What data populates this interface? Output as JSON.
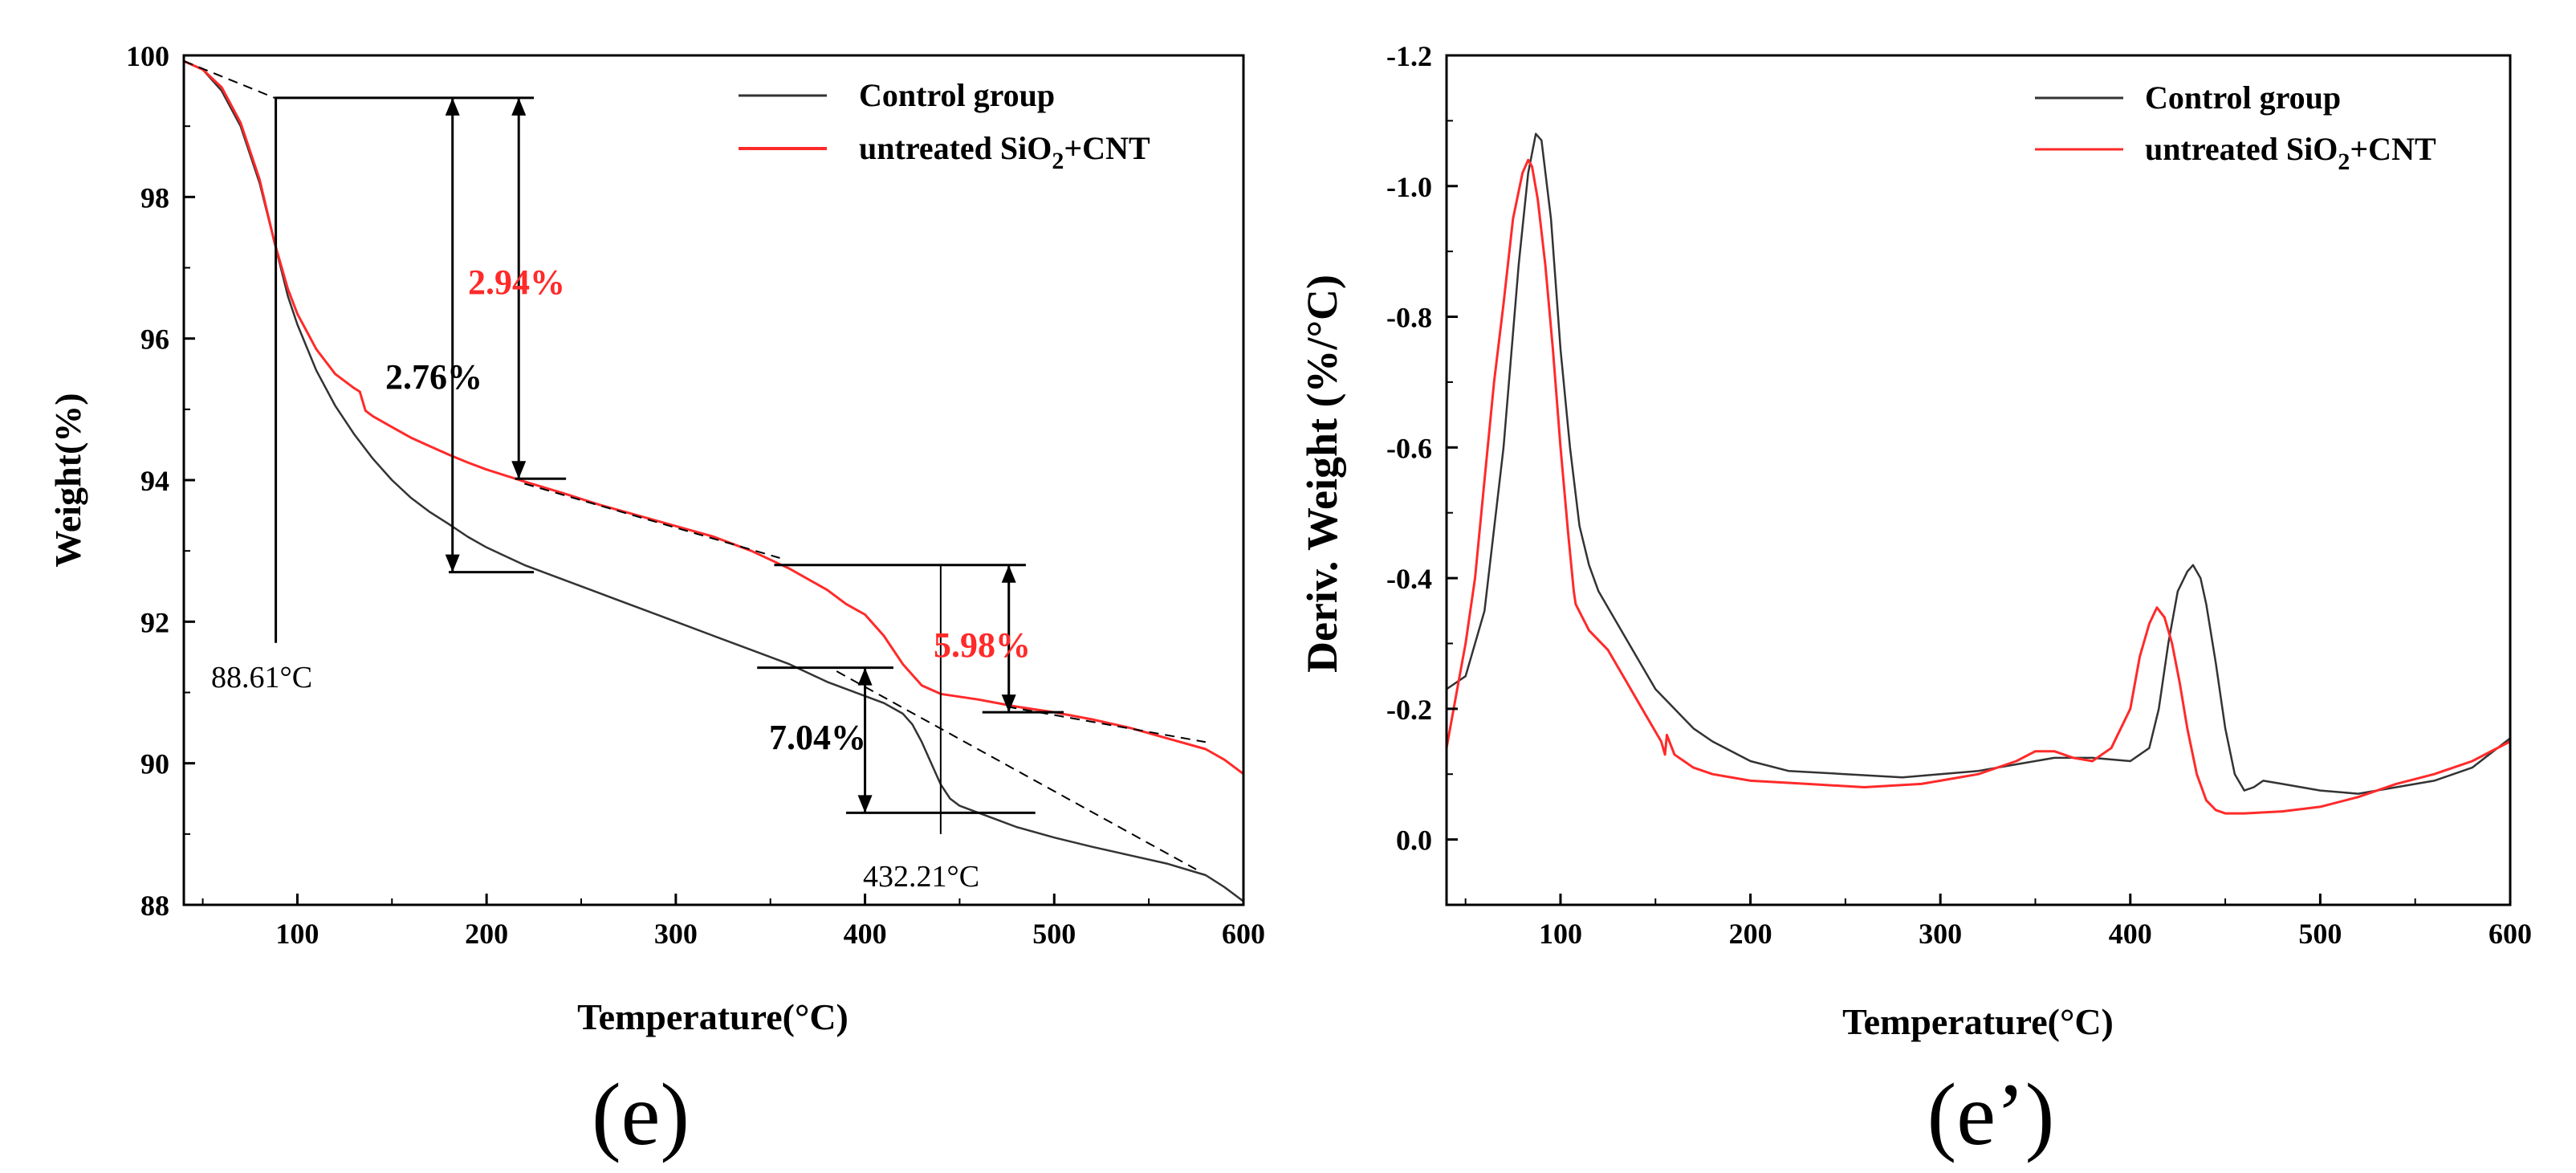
{
  "panel_e": {
    "panel_label": "(e)",
    "xlabel": "Temperature(°C)",
    "ylabel": "Weight(%)",
    "xlim": [
      40,
      600
    ],
    "ylim": [
      88,
      100
    ],
    "x_ticks": [
      100,
      200,
      300,
      400,
      500,
      600
    ],
    "y_ticks": [
      88,
      90,
      92,
      94,
      96,
      98,
      100
    ],
    "legend": {
      "control": "Control group",
      "treated_prefix": "untreated SiO",
      "treated_sub": "2",
      "treated_suffix": "+CNT"
    },
    "annotations": {
      "ctrl_step1": "2.76%",
      "treated_step1": "2.94%",
      "ctrl_step2": "7.04%",
      "treated_step2": "5.98%",
      "temp_peak1": "88.61°C",
      "temp_peak2": "432.21°C"
    }
  },
  "panel_e2": {
    "panel_label": "(e’)",
    "xlabel": "Temperature(°C)",
    "ylabel": "Deriv. Weight (%/°C)",
    "xlim": [
      40,
      600
    ],
    "ylim": [
      0.1,
      -1.2
    ],
    "x_ticks": [
      100,
      200,
      300,
      400,
      500,
      600
    ],
    "y_ticks": [
      0.0,
      -0.2,
      -0.4,
      -0.6,
      -0.8,
      -1.0,
      -1.2
    ],
    "y_tick_labels": [
      "0.0",
      "-0.2",
      "-0.4",
      "-0.6",
      "-0.8",
      "-1.0",
      "-1.2"
    ],
    "legend": {
      "control": "Control group",
      "treated_prefix": "untreated SiO",
      "treated_sub": "2",
      "treated_suffix": "+CNT"
    }
  },
  "colors": {
    "control": "#333333",
    "treated": "#ff2a2a",
    "axis": "#000000"
  },
  "chart_data": [
    {
      "type": "line",
      "title": "(e)",
      "xlabel": "Temperature(°C)",
      "ylabel": "Weight(%)",
      "xlim": [
        40,
        600
      ],
      "ylim": [
        88,
        100
      ],
      "series": [
        {
          "name": "Control group",
          "x": [
            40,
            50,
            60,
            70,
            80,
            88,
            95,
            100,
            110,
            120,
            130,
            140,
            150,
            160,
            170,
            180,
            190,
            200,
            220,
            240,
            260,
            280,
            300,
            320,
            340,
            360,
            380,
            400,
            410,
            420,
            425,
            430,
            435,
            440,
            445,
            450,
            460,
            470,
            480,
            500,
            520,
            540,
            560,
            580,
            590,
            600
          ],
          "y": [
            99.92,
            99.8,
            99.5,
            99.0,
            98.2,
            97.35,
            96.6,
            96.2,
            95.55,
            95.05,
            94.65,
            94.3,
            94.0,
            93.75,
            93.55,
            93.38,
            93.2,
            93.05,
            92.8,
            92.6,
            92.4,
            92.2,
            92.0,
            91.8,
            91.6,
            91.4,
            91.15,
            90.95,
            90.85,
            90.7,
            90.55,
            90.3,
            90.0,
            89.7,
            89.5,
            89.4,
            89.3,
            89.2,
            89.1,
            88.95,
            88.82,
            88.7,
            88.58,
            88.42,
            88.25,
            88.05
          ]
        },
        {
          "name": "untreated SiO2+CNT",
          "x": [
            40,
            50,
            60,
            70,
            80,
            88,
            95,
            100,
            110,
            120,
            130,
            133,
            136,
            140,
            150,
            160,
            170,
            180,
            190,
            200,
            220,
            240,
            260,
            280,
            300,
            320,
            340,
            360,
            380,
            390,
            400,
            410,
            420,
            430,
            440,
            460,
            480,
            500,
            520,
            540,
            560,
            580,
            590,
            600
          ],
          "y": [
            99.92,
            99.8,
            99.55,
            99.05,
            98.25,
            97.35,
            96.7,
            96.35,
            95.85,
            95.5,
            95.3,
            95.25,
            94.98,
            94.9,
            94.75,
            94.6,
            94.48,
            94.36,
            94.25,
            94.15,
            93.98,
            93.82,
            93.65,
            93.5,
            93.35,
            93.2,
            93.0,
            92.75,
            92.45,
            92.25,
            92.1,
            91.8,
            91.4,
            91.1,
            90.98,
            90.9,
            90.8,
            90.72,
            90.62,
            90.5,
            90.35,
            90.2,
            90.05,
            89.85
          ]
        }
      ],
      "annotations": [
        "2.76%",
        "2.94%",
        "7.04%",
        "5.98%",
        "88.61°C",
        "432.21°C"
      ]
    },
    {
      "type": "line",
      "title": "(e’)",
      "xlabel": "Temperature(°C)",
      "ylabel": "Deriv. Weight (%/°C)",
      "xlim": [
        40,
        600
      ],
      "ylim": [
        0.1,
        -1.2
      ],
      "series": [
        {
          "name": "Control group",
          "x": [
            40,
            50,
            60,
            70,
            78,
            83,
            87,
            90,
            95,
            100,
            105,
            110,
            115,
            120,
            130,
            140,
            150,
            160,
            170,
            180,
            200,
            220,
            250,
            280,
            300,
            320,
            340,
            360,
            380,
            400,
            410,
            415,
            420,
            425,
            430,
            433,
            437,
            440,
            445,
            450,
            455,
            460,
            465,
            470,
            480,
            500,
            520,
            540,
            560,
            580,
            600
          ],
          "y": [
            -0.23,
            -0.25,
            -0.35,
            -0.6,
            -0.88,
            -1.02,
            -1.08,
            -1.07,
            -0.95,
            -0.75,
            -0.6,
            -0.48,
            -0.42,
            -0.38,
            -0.33,
            -0.28,
            -0.23,
            -0.2,
            -0.17,
            -0.15,
            -0.12,
            -0.105,
            -0.1,
            -0.095,
            -0.1,
            -0.105,
            -0.115,
            -0.125,
            -0.125,
            -0.12,
            -0.14,
            -0.2,
            -0.3,
            -0.38,
            -0.41,
            -0.42,
            -0.4,
            -0.36,
            -0.27,
            -0.17,
            -0.1,
            -0.075,
            -0.08,
            -0.09,
            -0.085,
            -0.075,
            -0.07,
            -0.08,
            -0.09,
            -0.11,
            -0.155
          ]
        },
        {
          "name": "untreated SiO2+CNT",
          "x": [
            40,
            45,
            50,
            55,
            60,
            65,
            70,
            75,
            80,
            83,
            85,
            88,
            92,
            96,
            100,
            104,
            107,
            108,
            115,
            125,
            135,
            145,
            153,
            155,
            156,
            160,
            170,
            180,
            200,
            230,
            260,
            290,
            320,
            340,
            350,
            360,
            370,
            380,
            390,
            400,
            405,
            410,
            414,
            418,
            422,
            426,
            430,
            435,
            440,
            445,
            450,
            460,
            480,
            500,
            520,
            540,
            560,
            580,
            600
          ],
          "y": [
            -0.14,
            -0.22,
            -0.3,
            -0.4,
            -0.55,
            -0.7,
            -0.82,
            -0.95,
            -1.02,
            -1.04,
            -1.03,
            -0.98,
            -0.88,
            -0.75,
            -0.6,
            -0.47,
            -0.38,
            -0.36,
            -0.32,
            -0.29,
            -0.24,
            -0.19,
            -0.15,
            -0.13,
            -0.16,
            -0.13,
            -0.11,
            -0.1,
            -0.09,
            -0.085,
            -0.08,
            -0.085,
            -0.1,
            -0.12,
            -0.135,
            -0.135,
            -0.125,
            -0.12,
            -0.14,
            -0.2,
            -0.28,
            -0.33,
            -0.355,
            -0.34,
            -0.3,
            -0.24,
            -0.17,
            -0.1,
            -0.06,
            -0.045,
            -0.04,
            -0.04,
            -0.043,
            -0.05,
            -0.065,
            -0.085,
            -0.1,
            -0.12,
            -0.15
          ]
        }
      ]
    }
  ]
}
